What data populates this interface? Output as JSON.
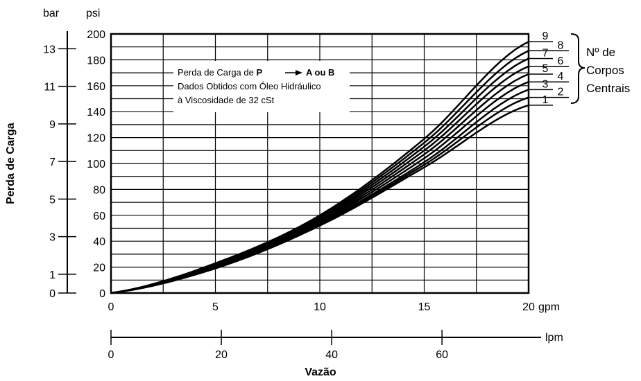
{
  "chart_data": {
    "type": "line",
    "annotation": {
      "line1_prefix": "Perda de Carga de ",
      "line1_bold": "P",
      "line1_bold_after": "A ou B",
      "line2": "Dados Obtidos com Óleo Hidráulico",
      "line3": "à Viscosidade de 32 cSt"
    },
    "y_title": "Perda de Carga",
    "x_title": "Vazão",
    "psi_axis": {
      "unit": "psi",
      "range": [
        0,
        200
      ],
      "ticks": [
        "0",
        "20",
        "40",
        "60",
        "80",
        "100",
        "120",
        "140",
        "160",
        "180",
        "200"
      ]
    },
    "bar_axis": {
      "unit": "bar",
      "range": [
        0,
        13.79
      ],
      "ticks": [
        "0",
        "1",
        "3",
        "5",
        "7",
        "9",
        "11",
        "13"
      ]
    },
    "gpm_axis": {
      "unit": "gpm",
      "range": [
        0,
        20
      ],
      "ticks": [
        "0",
        "5",
        "10",
        "15",
        "20"
      ]
    },
    "lpm_axis": {
      "unit": "lpm",
      "range": [
        0,
        75.7
      ],
      "ticks": [
        "0",
        "20",
        "40",
        "60"
      ]
    },
    "grid": true,
    "legend": {
      "title": [
        "Nº de",
        "Corpos",
        "Centrais"
      ],
      "placement": "right",
      "labels": [
        "1",
        "2",
        "3",
        "4",
        "5",
        "6",
        "7",
        "8",
        "9"
      ]
    },
    "series": [
      {
        "name": "1",
        "x": [
          0,
          5,
          10,
          15,
          20
        ],
        "y": [
          0,
          19,
          52,
          97,
          145
        ]
      },
      {
        "name": "2",
        "x": [
          0,
          5,
          10,
          15,
          20
        ],
        "y": [
          0,
          19.5,
          53,
          99,
          151
        ]
      },
      {
        "name": "3",
        "x": [
          0,
          5,
          10,
          15,
          20
        ],
        "y": [
          0,
          20,
          54,
          101,
          157
        ]
      },
      {
        "name": "4",
        "x": [
          0,
          5,
          10,
          15,
          20
        ],
        "y": [
          0,
          20.5,
          55,
          104,
          163
        ]
      },
      {
        "name": "5",
        "x": [
          0,
          5,
          10,
          15,
          20
        ],
        "y": [
          0,
          21,
          56,
          107,
          169
        ]
      },
      {
        "name": "6",
        "x": [
          0,
          5,
          10,
          15,
          20
        ],
        "y": [
          0,
          21.5,
          57,
          110,
          175
        ]
      },
      {
        "name": "7",
        "x": [
          0,
          5,
          10,
          15,
          20
        ],
        "y": [
          0,
          22,
          58,
          113,
          181
        ]
      },
      {
        "name": "8",
        "x": [
          0,
          5,
          10,
          15,
          20
        ],
        "y": [
          0,
          22.5,
          59,
          116,
          187
        ]
      },
      {
        "name": "9",
        "x": [
          0,
          5,
          10,
          15,
          20
        ],
        "y": [
          0,
          23,
          60,
          119,
          194
        ]
      }
    ]
  }
}
